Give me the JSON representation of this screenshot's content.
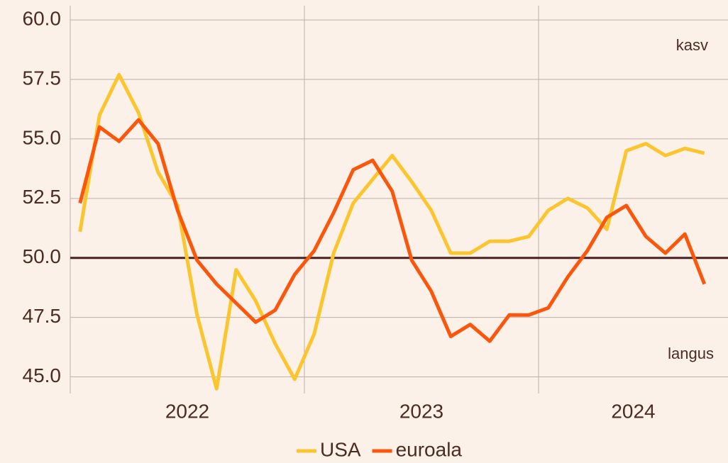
{
  "chart_data": {
    "type": "line",
    "years": [
      "2022",
      "2023",
      "2024"
    ],
    "series": [
      {
        "name": "USA",
        "color": "#fbc52f",
        "values": [
          51.1,
          56.0,
          57.7,
          56.1,
          53.6,
          52.2,
          47.6,
          44.5,
          49.5,
          48.2,
          46.4,
          44.9,
          46.8,
          50.2,
          52.3,
          53.3,
          54.3,
          53.2,
          52.0,
          50.2,
          50.2,
          50.7,
          50.7,
          50.9,
          52.0,
          52.5,
          52.1,
          51.2,
          54.5,
          54.8,
          54.3,
          54.6,
          54.4
        ]
      },
      {
        "name": "euroala",
        "color": "#fa560c",
        "values": [
          52.3,
          55.5,
          54.9,
          55.8,
          54.8,
          52.0,
          49.9,
          48.9,
          48.1,
          47.3,
          47.8,
          49.3,
          50.3,
          51.9,
          53.7,
          54.1,
          52.8,
          49.9,
          48.6,
          46.7,
          47.2,
          46.5,
          47.6,
          47.6,
          47.9,
          49.2,
          50.3,
          51.7,
          52.2,
          50.9,
          50.2,
          51.0,
          48.9
        ]
      }
    ],
    "ylim": [
      44.3,
      60.6
    ],
    "yticks": [
      {
        "value": 45,
        "label": "45.0"
      },
      47.5,
      {
        "value": 50,
        "label": "50.0"
      },
      52.5,
      {
        "value": 55,
        "label": "55.0"
      },
      57.5,
      {
        "value": 60,
        "label": "60.0"
      }
    ],
    "grid": true,
    "reference_line": 50,
    "annotations": {
      "top": "kasv",
      "bottom": "langus"
    },
    "legend": "bottom"
  }
}
